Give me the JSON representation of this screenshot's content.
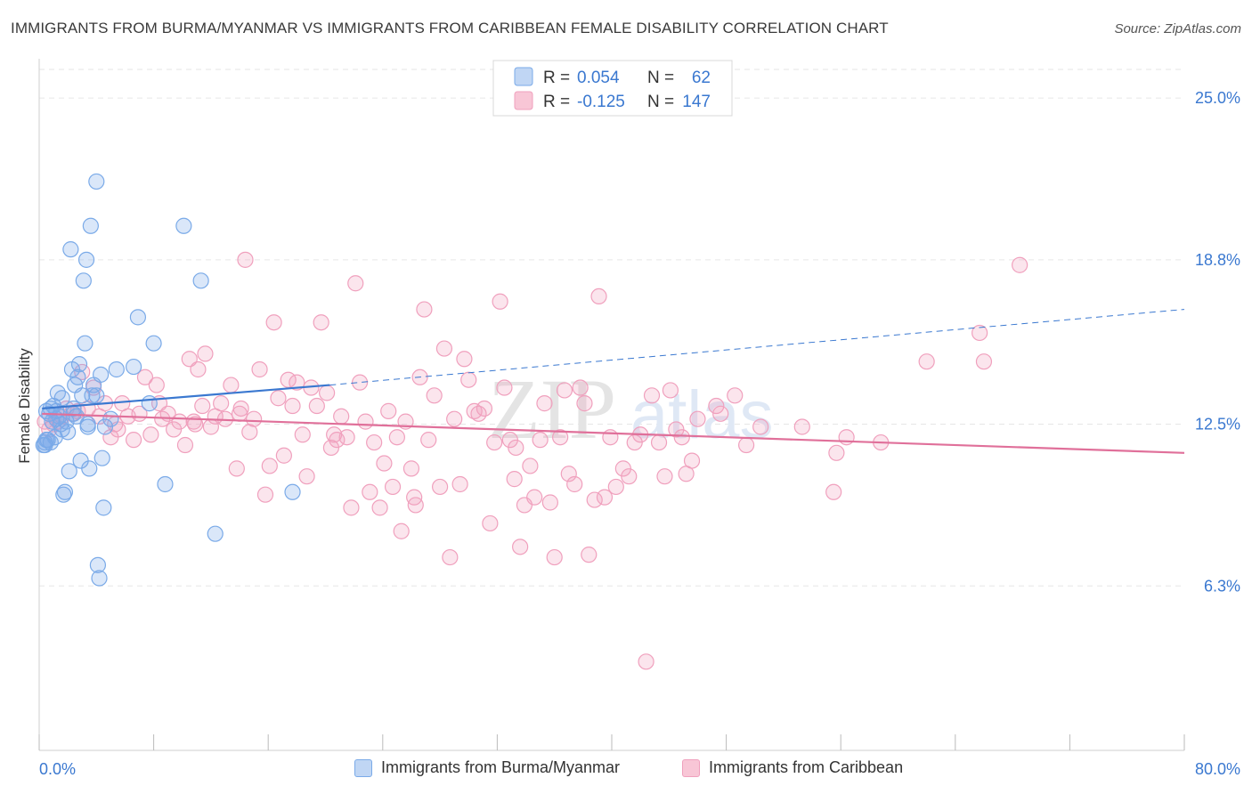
{
  "title": "IMMIGRANTS FROM BURMA/MYANMAR VS IMMIGRANTS FROM CARIBBEAN FEMALE DISABILITY CORRELATION CHART",
  "source": "Source: ZipAtlas.com",
  "watermark": {
    "zip": "ZIP",
    "atlas": "atlas"
  },
  "chart_data": {
    "type": "scatter",
    "ylabel": "Female Disability",
    "x_tick_labels": [
      "0.0%",
      "80.0%"
    ],
    "y_tick_labels": [
      "25.0%",
      "18.8%",
      "12.5%",
      "6.3%"
    ],
    "y_ticks": [
      25.0,
      18.8,
      12.5,
      6.3
    ],
    "xlim": [
      0,
      80
    ],
    "ylim": [
      0,
      26.3
    ],
    "grid": true,
    "legend_top": [
      {
        "r_label": "R = ",
        "r_value": "0.054",
        "n_label": "N = ",
        "n_value": "62"
      },
      {
        "r_label": "R = ",
        "r_value": "-0.125",
        "n_label": "N = ",
        "n_value": "147"
      }
    ],
    "series": [
      {
        "name": "Immigrants from Burma/Myanmar",
        "color": "#7aaae8",
        "line_color": "#3a78d0",
        "trend": {
          "x0": 0.2,
          "y0": 13.1,
          "x1": 20.3,
          "y1": 14.0,
          "x_dash_end": 80.0,
          "y_dash_end": 16.9
        },
        "points": [
          [
            0.3,
            11.7
          ],
          [
            0.4,
            11.8
          ],
          [
            0.5,
            13.0
          ],
          [
            0.6,
            11.9
          ],
          [
            0.7,
            12.9
          ],
          [
            0.8,
            11.8
          ],
          [
            0.9,
            12.6
          ],
          [
            1.0,
            13.2
          ],
          [
            1.1,
            12.0
          ],
          [
            1.2,
            13.0
          ],
          [
            1.3,
            13.7
          ],
          [
            1.4,
            12.8
          ],
          [
            1.5,
            12.5
          ],
          [
            1.6,
            13.5
          ],
          [
            1.7,
            9.8
          ],
          [
            1.8,
            9.9
          ],
          [
            1.9,
            12.6
          ],
          [
            2.0,
            12.2
          ],
          [
            2.1,
            10.7
          ],
          [
            2.2,
            19.2
          ],
          [
            2.3,
            14.6
          ],
          [
            2.4,
            13.1
          ],
          [
            2.5,
            14.0
          ],
          [
            2.6,
            12.8
          ],
          [
            2.7,
            14.3
          ],
          [
            2.8,
            14.8
          ],
          [
            2.9,
            11.1
          ],
          [
            3.0,
            13.6
          ],
          [
            3.1,
            18.0
          ],
          [
            3.2,
            15.6
          ],
          [
            3.3,
            18.8
          ],
          [
            3.4,
            12.4
          ],
          [
            3.5,
            10.8
          ],
          [
            3.6,
            20.1
          ],
          [
            3.7,
            13.6
          ],
          [
            3.8,
            14.0
          ],
          [
            4.0,
            21.8
          ],
          [
            4.1,
            7.1
          ],
          [
            4.2,
            6.6
          ],
          [
            4.3,
            14.4
          ],
          [
            4.4,
            11.2
          ],
          [
            4.5,
            9.3
          ],
          [
            4.6,
            12.4
          ],
          [
            5.0,
            12.7
          ],
          [
            5.4,
            14.6
          ],
          [
            6.6,
            14.7
          ],
          [
            6.9,
            16.6
          ],
          [
            7.7,
            13.3
          ],
          [
            8.0,
            15.6
          ],
          [
            8.8,
            10.2
          ],
          [
            10.1,
            20.1
          ],
          [
            11.3,
            18.0
          ],
          [
            12.3,
            8.3
          ],
          [
            17.7,
            9.9
          ],
          [
            0.5,
            11.9
          ],
          [
            0.8,
            13.1
          ],
          [
            1.2,
            12.7
          ],
          [
            1.6,
            12.3
          ],
          [
            2.4,
            12.9
          ],
          [
            3.4,
            12.5
          ],
          [
            4.0,
            13.6
          ],
          [
            0.4,
            11.7
          ]
        ]
      },
      {
        "name": "Immigrants from Caribbean",
        "color": "#f0a0bd",
        "line_color": "#e0709a",
        "trend": {
          "x0": 0.2,
          "y0": 12.9,
          "x1": 80.0,
          "y1": 11.4
        },
        "points": [
          [
            0.4,
            12.6
          ],
          [
            0.7,
            12.3
          ],
          [
            1.0,
            12.5
          ],
          [
            1.3,
            12.6
          ],
          [
            1.6,
            12.8
          ],
          [
            1.9,
            13.1
          ],
          [
            2.3,
            12.9
          ],
          [
            2.7,
            13.0
          ],
          [
            3.0,
            14.5
          ],
          [
            3.4,
            13.1
          ],
          [
            3.8,
            13.9
          ],
          [
            4.2,
            12.8
          ],
          [
            4.6,
            13.3
          ],
          [
            5.0,
            12.0
          ],
          [
            5.5,
            12.3
          ],
          [
            5.8,
            13.3
          ],
          [
            6.2,
            12.8
          ],
          [
            6.6,
            11.9
          ],
          [
            7.0,
            12.9
          ],
          [
            7.4,
            14.3
          ],
          [
            7.8,
            12.1
          ],
          [
            8.2,
            14.0
          ],
          [
            8.6,
            12.7
          ],
          [
            9.0,
            12.9
          ],
          [
            9.4,
            12.3
          ],
          [
            9.8,
            12.6
          ],
          [
            10.2,
            11.7
          ],
          [
            10.5,
            15.0
          ],
          [
            10.9,
            12.5
          ],
          [
            11.1,
            14.6
          ],
          [
            11.4,
            13.2
          ],
          [
            11.6,
            15.2
          ],
          [
            12.0,
            12.4
          ],
          [
            12.3,
            12.8
          ],
          [
            12.7,
            13.3
          ],
          [
            13.0,
            12.7
          ],
          [
            13.4,
            14.0
          ],
          [
            13.8,
            10.8
          ],
          [
            14.1,
            13.1
          ],
          [
            14.4,
            18.8
          ],
          [
            14.7,
            12.2
          ],
          [
            15.0,
            12.7
          ],
          [
            15.4,
            14.6
          ],
          [
            15.8,
            9.8
          ],
          [
            16.1,
            10.9
          ],
          [
            16.4,
            16.4
          ],
          [
            16.7,
            13.5
          ],
          [
            17.1,
            11.3
          ],
          [
            17.4,
            14.2
          ],
          [
            17.7,
            13.2
          ],
          [
            18.0,
            14.1
          ],
          [
            18.4,
            12.1
          ],
          [
            18.7,
            10.5
          ],
          [
            19.0,
            13.9
          ],
          [
            19.4,
            13.2
          ],
          [
            19.7,
            16.4
          ],
          [
            20.1,
            13.7
          ],
          [
            20.4,
            11.6
          ],
          [
            20.8,
            11.9
          ],
          [
            21.1,
            12.8
          ],
          [
            21.5,
            12.0
          ],
          [
            21.8,
            9.3
          ],
          [
            22.1,
            17.9
          ],
          [
            22.4,
            14.1
          ],
          [
            22.8,
            12.6
          ],
          [
            23.1,
            9.9
          ],
          [
            23.4,
            11.8
          ],
          [
            23.8,
            9.3
          ],
          [
            24.1,
            11.0
          ],
          [
            24.4,
            13.0
          ],
          [
            24.7,
            10.1
          ],
          [
            25.0,
            12.0
          ],
          [
            25.3,
            8.4
          ],
          [
            25.6,
            12.6
          ],
          [
            26.0,
            10.8
          ],
          [
            26.3,
            9.4
          ],
          [
            26.6,
            14.3
          ],
          [
            26.9,
            16.9
          ],
          [
            27.2,
            11.9
          ],
          [
            27.6,
            13.6
          ],
          [
            28.0,
            10.1
          ],
          [
            28.3,
            15.4
          ],
          [
            28.7,
            7.4
          ],
          [
            29.0,
            12.7
          ],
          [
            29.4,
            10.2
          ],
          [
            29.7,
            15.0
          ],
          [
            30.0,
            14.2
          ],
          [
            30.4,
            13.0
          ],
          [
            30.7,
            12.9
          ],
          [
            31.1,
            13.1
          ],
          [
            31.5,
            8.7
          ],
          [
            31.8,
            11.8
          ],
          [
            32.2,
            17.2
          ],
          [
            32.5,
            13.9
          ],
          [
            32.9,
            11.9
          ],
          [
            33.2,
            10.4
          ],
          [
            33.6,
            7.8
          ],
          [
            33.9,
            9.4
          ],
          [
            34.3,
            10.9
          ],
          [
            34.6,
            9.7
          ],
          [
            35.0,
            11.9
          ],
          [
            35.3,
            13.3
          ],
          [
            35.7,
            9.5
          ],
          [
            36.0,
            7.4
          ],
          [
            36.4,
            12.0
          ],
          [
            36.7,
            13.8
          ],
          [
            37.0,
            10.6
          ],
          [
            37.4,
            10.2
          ],
          [
            37.8,
            13.9
          ],
          [
            38.1,
            13.3
          ],
          [
            38.4,
            7.5
          ],
          [
            38.8,
            9.6
          ],
          [
            39.1,
            17.4
          ],
          [
            39.5,
            9.7
          ],
          [
            39.9,
            12.0
          ],
          [
            40.3,
            10.1
          ],
          [
            40.8,
            10.8
          ],
          [
            41.2,
            10.5
          ],
          [
            41.6,
            11.8
          ],
          [
            42.0,
            12.1
          ],
          [
            42.4,
            3.4
          ],
          [
            42.8,
            13.6
          ],
          [
            43.3,
            11.8
          ],
          [
            43.7,
            10.5
          ],
          [
            44.1,
            13.8
          ],
          [
            44.5,
            12.3
          ],
          [
            44.9,
            12.0
          ],
          [
            45.2,
            10.6
          ],
          [
            45.6,
            11.1
          ],
          [
            46.0,
            12.7
          ],
          [
            47.3,
            13.2
          ],
          [
            48.6,
            13.6
          ],
          [
            49.4,
            11.7
          ],
          [
            50.4,
            12.4
          ],
          [
            55.5,
            9.9
          ],
          [
            56.4,
            12.0
          ],
          [
            58.8,
            11.8
          ],
          [
            62.0,
            14.9
          ],
          [
            65.7,
            16.0
          ],
          [
            66.0,
            14.9
          ],
          [
            68.5,
            18.6
          ],
          [
            47.6,
            12.9
          ],
          [
            53.3,
            12.4
          ],
          [
            55.7,
            11.4
          ],
          [
            26.2,
            9.7
          ],
          [
            33.3,
            11.6
          ],
          [
            20.6,
            12.1
          ],
          [
            5.3,
            12.5
          ],
          [
            8.4,
            13.3
          ],
          [
            10.8,
            12.6
          ],
          [
            14.0,
            12.9
          ]
        ]
      }
    ]
  }
}
